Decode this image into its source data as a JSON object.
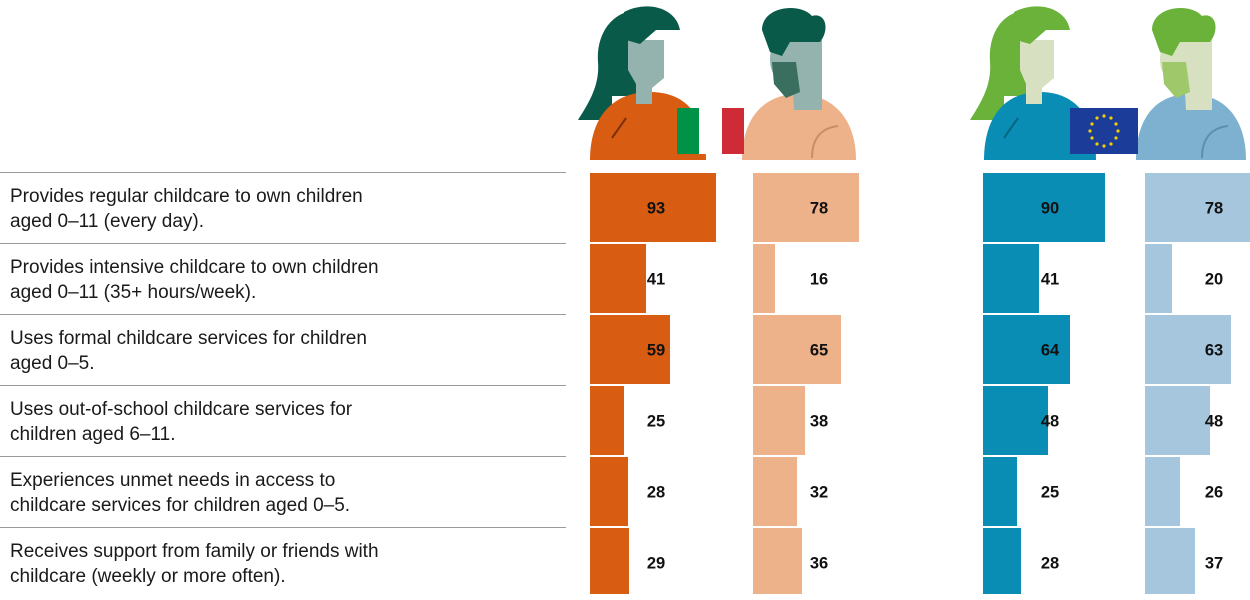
{
  "chart_data": {
    "type": "bar",
    "categories": [
      "Provides regular childcare to own children\naged 0–11 (every day).",
      "Provides intensive childcare to own children\naged 0–11 (35+ hours/week).",
      "Uses formal childcare services for children\naged 0–5.",
      "Uses out-of-school childcare services for\nchildren aged 6–11.",
      "Experiences unmet needs in access to\nchildcare services for children aged 0–5.",
      "Receives support from family or friends with\nchildcare (weekly or more often)."
    ],
    "series": [
      {
        "values": [
          93,
          41,
          59,
          25,
          28,
          29
        ],
        "color": "#d85c12"
      },
      {
        "values": [
          78,
          16,
          65,
          38,
          32,
          36
        ],
        "color": "#eeb28a"
      },
      {
        "values": [
          90,
          41,
          64,
          48,
          25,
          28
        ],
        "color": "#0a8db5"
      },
      {
        "values": [
          78,
          20,
          63,
          48,
          26,
          37
        ],
        "color": "#a6c6dd"
      }
    ],
    "ylim": [
      0,
      100
    ],
    "groups": [
      {
        "icons": [
          "woman-figure-icon",
          "man-figure-icon",
          "italy-flag-icon"
        ]
      },
      {
        "icons": [
          "woman-figure-icon",
          "man-figure-icon",
          "eu-flag-icon"
        ]
      }
    ]
  }
}
